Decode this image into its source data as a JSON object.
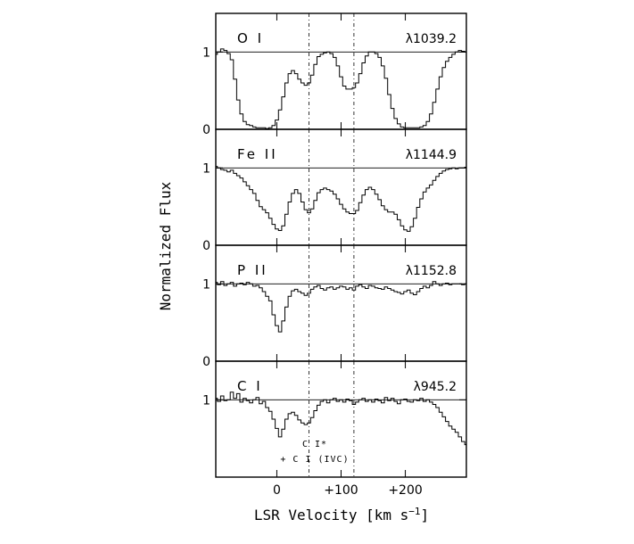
{
  "chart_data": {
    "type": "line",
    "style": "step",
    "xlabel": "LSR Velocity [km s",
    "xlabel_sup": "−1",
    "xlabel_end": "]",
    "ylabel": "Normalized Flux",
    "xlim": [
      -95,
      295
    ],
    "ylim": [
      0,
      1.5
    ],
    "x_ticks": [
      {
        "value": 0,
        "label": "0"
      },
      {
        "value": 100,
        "label": "+100"
      },
      {
        "value": 200,
        "label": "+200"
      }
    ],
    "reference_lines": [
      50,
      120
    ],
    "continuum": 1,
    "panels": [
      {
        "species": "O I",
        "wavelength": "λ1039.2",
        "y_ticks": [
          {
            "value": 1,
            "label": "1"
          },
          {
            "value": 0,
            "label": "0"
          }
        ],
        "x": [
          -95,
          -90,
          -85,
          -80,
          -75,
          -70,
          -65,
          -60,
          -55,
          -50,
          -45,
          -40,
          -35,
          -30,
          -25,
          -20,
          -15,
          -10,
          -5,
          0,
          5,
          10,
          15,
          20,
          25,
          30,
          35,
          40,
          45,
          50,
          55,
          60,
          65,
          70,
          75,
          80,
          85,
          90,
          95,
          100,
          105,
          110,
          115,
          120,
          125,
          130,
          135,
          140,
          145,
          150,
          155,
          160,
          165,
          170,
          175,
          180,
          185,
          190,
          195,
          200,
          205,
          210,
          215,
          220,
          225,
          230,
          235,
          240,
          245,
          250,
          255,
          260,
          265,
          270,
          275,
          280,
          285,
          290,
          295
        ],
        "y": [
          0.97,
          1.0,
          1.04,
          1.02,
          0.98,
          0.9,
          0.65,
          0.38,
          0.2,
          0.1,
          0.06,
          0.05,
          0.03,
          0.02,
          0.02,
          0.02,
          0.01,
          0.02,
          0.05,
          0.12,
          0.25,
          0.42,
          0.6,
          0.72,
          0.76,
          0.72,
          0.65,
          0.6,
          0.57,
          0.6,
          0.7,
          0.84,
          0.94,
          0.97,
          0.99,
          1.0,
          0.98,
          0.93,
          0.82,
          0.68,
          0.56,
          0.52,
          0.52,
          0.54,
          0.6,
          0.72,
          0.86,
          0.95,
          1.0,
          1.0,
          0.98,
          0.93,
          0.82,
          0.66,
          0.45,
          0.27,
          0.14,
          0.07,
          0.03,
          0.02,
          0.02,
          0.02,
          0.02,
          0.02,
          0.03,
          0.05,
          0.1,
          0.2,
          0.35,
          0.52,
          0.68,
          0.8,
          0.88,
          0.93,
          0.97,
          1.0,
          1.02,
          1.01,
          1.0
        ]
      },
      {
        "species": "Fe II",
        "wavelength": "λ1144.9",
        "y_ticks": [
          {
            "value": 1,
            "label": "1"
          },
          {
            "value": 0,
            "label": "0"
          }
        ],
        "x": [
          -95,
          -90,
          -85,
          -80,
          -75,
          -70,
          -65,
          -60,
          -55,
          -50,
          -45,
          -40,
          -35,
          -30,
          -25,
          -20,
          -15,
          -10,
          -5,
          0,
          5,
          10,
          15,
          20,
          25,
          30,
          35,
          40,
          45,
          50,
          55,
          60,
          65,
          70,
          75,
          80,
          85,
          90,
          95,
          100,
          105,
          110,
          115,
          120,
          125,
          130,
          135,
          140,
          145,
          150,
          155,
          160,
          165,
          170,
          175,
          180,
          185,
          190,
          195,
          200,
          205,
          210,
          215,
          220,
          225,
          230,
          235,
          240,
          245,
          250,
          255,
          260,
          265,
          270,
          275,
          280,
          285,
          290,
          295
        ],
        "y": [
          1.02,
          1.0,
          0.98,
          0.97,
          0.95,
          0.97,
          0.93,
          0.9,
          0.87,
          0.82,
          0.77,
          0.72,
          0.67,
          0.58,
          0.5,
          0.46,
          0.42,
          0.35,
          0.27,
          0.21,
          0.19,
          0.25,
          0.4,
          0.56,
          0.67,
          0.72,
          0.67,
          0.56,
          0.46,
          0.42,
          0.47,
          0.58,
          0.68,
          0.72,
          0.74,
          0.72,
          0.7,
          0.66,
          0.6,
          0.53,
          0.47,
          0.43,
          0.41,
          0.41,
          0.45,
          0.55,
          0.65,
          0.72,
          0.75,
          0.72,
          0.66,
          0.59,
          0.51,
          0.46,
          0.43,
          0.43,
          0.4,
          0.33,
          0.25,
          0.2,
          0.18,
          0.24,
          0.35,
          0.49,
          0.6,
          0.69,
          0.74,
          0.78,
          0.84,
          0.89,
          0.93,
          0.96,
          0.98,
          0.99,
          1.0,
          0.99,
          1.0,
          1.0,
          1.01
        ]
      },
      {
        "species": "P II",
        "wavelength": "λ1152.8",
        "y_ticks": [
          {
            "value": 1,
            "label": "1"
          },
          {
            "value": 0,
            "label": "0"
          }
        ],
        "x": [
          -95,
          -90,
          -85,
          -80,
          -75,
          -70,
          -65,
          -60,
          -55,
          -50,
          -45,
          -40,
          -35,
          -30,
          -25,
          -20,
          -15,
          -10,
          -5,
          0,
          5,
          10,
          15,
          20,
          25,
          30,
          35,
          40,
          45,
          50,
          55,
          60,
          65,
          70,
          75,
          80,
          85,
          90,
          95,
          100,
          105,
          110,
          115,
          120,
          125,
          130,
          135,
          140,
          145,
          150,
          155,
          160,
          165,
          170,
          175,
          180,
          185,
          190,
          195,
          200,
          205,
          210,
          215,
          220,
          225,
          230,
          235,
          240,
          245,
          250,
          255,
          260,
          265,
          270,
          275,
          280,
          285,
          290,
          295
        ],
        "y": [
          1.02,
          0.99,
          1.03,
          0.98,
          1.0,
          1.02,
          0.97,
          1.0,
          1.01,
          0.99,
          1.02,
          1.0,
          0.97,
          0.98,
          0.95,
          0.9,
          0.84,
          0.78,
          0.6,
          0.46,
          0.38,
          0.52,
          0.7,
          0.84,
          0.91,
          0.93,
          0.9,
          0.88,
          0.85,
          0.88,
          0.93,
          0.96,
          0.98,
          0.94,
          0.92,
          0.95,
          0.96,
          0.93,
          0.95,
          0.97,
          0.96,
          0.93,
          0.95,
          0.92,
          0.97,
          0.99,
          0.96,
          0.94,
          0.98,
          0.97,
          0.95,
          0.94,
          0.93,
          0.96,
          0.94,
          0.92,
          0.9,
          0.89,
          0.87,
          0.9,
          0.92,
          0.88,
          0.86,
          0.9,
          0.94,
          0.97,
          0.95,
          0.98,
          1.03,
          1.0,
          0.98,
          1.0,
          1.01,
          0.99,
          1.0,
          1.0,
          1.0,
          0.99,
          1.0
        ]
      },
      {
        "species": "C I",
        "wavelength": "λ945.2",
        "y_ticks": [
          {
            "value": 1,
            "label": "1"
          }
        ],
        "annotation": [
          "C I*",
          "+ C I (IVC)"
        ],
        "x": [
          -95,
          -90,
          -85,
          -80,
          -75,
          -70,
          -65,
          -60,
          -55,
          -50,
          -45,
          -40,
          -35,
          -30,
          -25,
          -20,
          -15,
          -10,
          -5,
          0,
          5,
          10,
          15,
          20,
          25,
          30,
          35,
          40,
          45,
          50,
          55,
          60,
          65,
          70,
          75,
          80,
          85,
          90,
          95,
          100,
          105,
          110,
          115,
          120,
          125,
          130,
          135,
          140,
          145,
          150,
          155,
          160,
          165,
          170,
          175,
          180,
          185,
          190,
          195,
          200,
          205,
          210,
          215,
          220,
          225,
          230,
          235,
          240,
          245,
          250,
          255,
          260,
          265,
          270,
          275,
          280,
          285,
          290,
          295
        ],
        "y": [
          1.02,
          0.98,
          1.05,
          0.99,
          1.0,
          1.1,
          1.02,
          1.08,
          0.97,
          1.02,
          0.99,
          0.96,
          1.0,
          1.03,
          0.95,
          0.98,
          0.9,
          0.85,
          0.75,
          0.63,
          0.52,
          0.62,
          0.75,
          0.82,
          0.84,
          0.8,
          0.74,
          0.7,
          0.68,
          0.7,
          0.77,
          0.86,
          0.93,
          0.98,
          1.0,
          0.96,
          1.0,
          1.02,
          0.98,
          1.0,
          0.97,
          1.01,
          0.99,
          0.94,
          0.97,
          1.0,
          1.02,
          0.98,
          1.0,
          0.97,
          1.01,
          0.99,
          0.96,
          1.03,
          0.99,
          1.02,
          0.98,
          0.95,
          1.0,
          1.01,
          0.98,
          0.97,
          1.0,
          0.99,
          1.02,
          0.98,
          1.0,
          0.97,
          0.94,
          0.9,
          0.84,
          0.78,
          0.72,
          0.66,
          0.62,
          0.58,
          0.52,
          0.46,
          0.42
        ]
      }
    ]
  }
}
